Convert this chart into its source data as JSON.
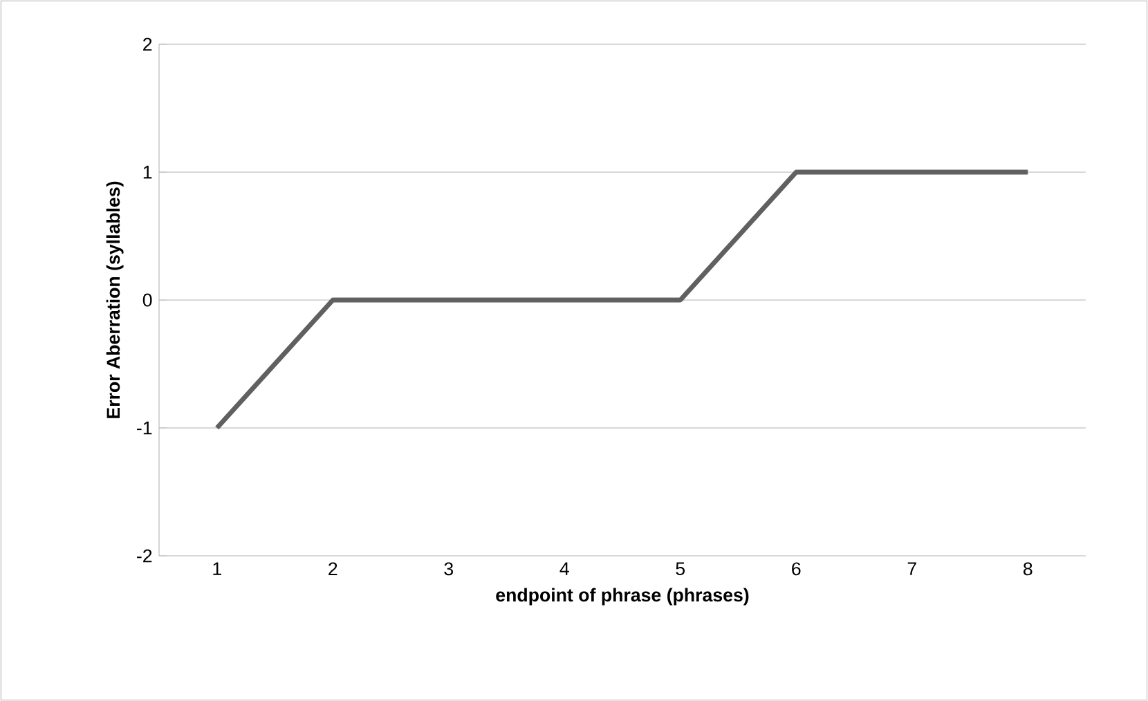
{
  "chart_data": {
    "type": "line",
    "xlabel": "endpoint of phrase (phrases)",
    "ylabel": "Error Aberration (syllables)",
    "categories": [
      "1",
      "2",
      "3",
      "4",
      "5",
      "6",
      "7",
      "8"
    ],
    "values": [
      -1,
      0,
      0,
      0,
      0,
      1,
      1,
      1
    ],
    "color": "#606060",
    "ylim": [
      -2,
      2
    ],
    "yticks": [
      -2,
      -1,
      0,
      1,
      2
    ],
    "grid": "y"
  }
}
